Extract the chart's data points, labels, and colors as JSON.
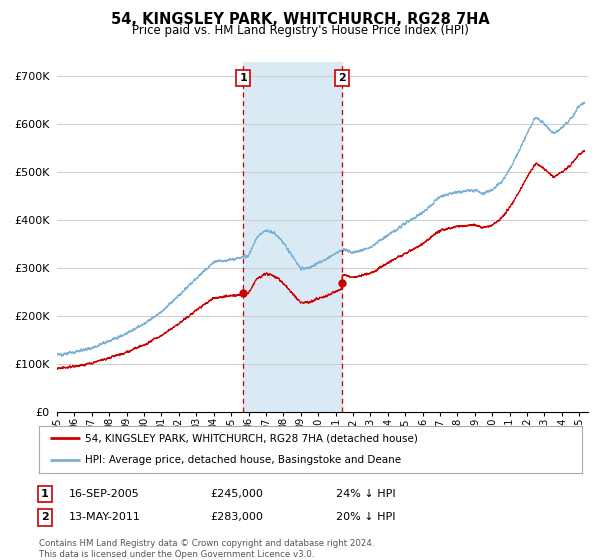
{
  "title": "54, KINGSLEY PARK, WHITCHURCH, RG28 7HA",
  "subtitle": "Price paid vs. HM Land Registry's House Price Index (HPI)",
  "ylabel_ticks": [
    "£0",
    "£100K",
    "£200K",
    "£300K",
    "£400K",
    "£500K",
    "£600K",
    "£700K"
  ],
  "ytick_vals": [
    0,
    100000,
    200000,
    300000,
    400000,
    500000,
    600000,
    700000
  ],
  "ylim": [
    0,
    730000
  ],
  "xlim_start": 1995.0,
  "xlim_end": 2025.5,
  "t1_x": 2005.71,
  "t2_x": 2011.36,
  "t1_price": 245000,
  "t2_price": 283000,
  "annotation1": {
    "x": 2005.71,
    "label": "1",
    "date": "16-SEP-2005",
    "price": "£245,000",
    "pct": "24% ↓ HPI"
  },
  "annotation2": {
    "x": 2011.36,
    "label": "2",
    "date": "13-MAY-2011",
    "price": "£283,000",
    "pct": "20% ↓ HPI"
  },
  "legend_line1": "54, KINGSLEY PARK, WHITCHURCH, RG28 7HA (detached house)",
  "legend_line2": "HPI: Average price, detached house, Basingstoke and Deane",
  "footer": "Contains HM Land Registry data © Crown copyright and database right 2024.\nThis data is licensed under the Open Government Licence v3.0.",
  "line_color_red": "#cc0000",
  "line_color_blue": "#7ab0d4",
  "shading_color": "#daeaf5",
  "annotation_box_color": "#cc0000",
  "background_color": "#ffffff",
  "grid_color": "#cccccc"
}
